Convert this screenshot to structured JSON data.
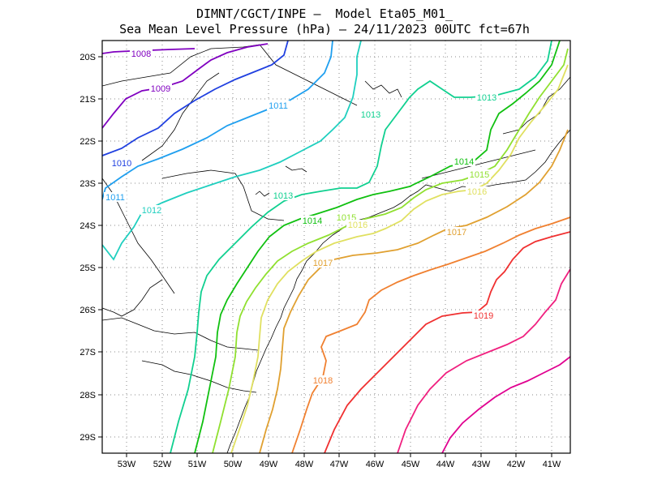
{
  "title": {
    "line1": "DIMNT/CGCT/INPE –  Model Eta05_M01_",
    "line2": "Sea Mean Level Pressure (hPa) – 24/11/2023 00UTC fct=67h"
  },
  "axes": {
    "lon_labels": [
      "53W",
      "52W",
      "51W",
      "50W",
      "49W",
      "48W",
      "47W",
      "46W",
      "45W",
      "44W",
      "43W",
      "42W",
      "41W"
    ],
    "lat_labels": [
      "20S",
      "21S",
      "22S",
      "23S",
      "24S",
      "25S",
      "26S",
      "27S",
      "28S",
      "29S"
    ]
  },
  "colors": {
    "1008": "#8000c0",
    "1009": "#8000c0",
    "1010": "#2040e0",
    "1011": "#1f9fef",
    "1012": "#1fcfbf",
    "1013": "#10d090",
    "1014": "#10c010",
    "1015": "#90e030",
    "1016": "#e0e060",
    "1017": "#e0a030",
    "1018": "#f08030",
    "1019": "#f03030",
    "1020": "#f0207f",
    "1021": "#e00090",
    "border": "#000000",
    "grid": "#888888"
  },
  "contour_labels": [
    {
      "text": "1008",
      "level": "1008"
    },
    {
      "text": "1009",
      "level": "1009"
    },
    {
      "text": "1010",
      "level": "1010"
    },
    {
      "text": "1011",
      "level": "1011"
    },
    {
      "text": "1011",
      "level": "1011"
    },
    {
      "text": "1012",
      "level": "1012"
    },
    {
      "text": "1013",
      "level": "1013"
    },
    {
      "text": "1013",
      "level": "1013"
    },
    {
      "text": "1013",
      "level": "1013"
    },
    {
      "text": "1014",
      "level": "1014"
    },
    {
      "text": "1014",
      "level": "1014"
    },
    {
      "text": "1015",
      "level": "1015"
    },
    {
      "text": "1015",
      "level": "1015"
    },
    {
      "text": "1016",
      "level": "1016"
    },
    {
      "text": "1016",
      "level": "1016"
    },
    {
      "text": "1017",
      "level": "1017"
    },
    {
      "text": "1017",
      "level": "1017"
    },
    {
      "text": "1018",
      "level": "1018"
    },
    {
      "text": "1019",
      "level": "1019"
    }
  ]
}
